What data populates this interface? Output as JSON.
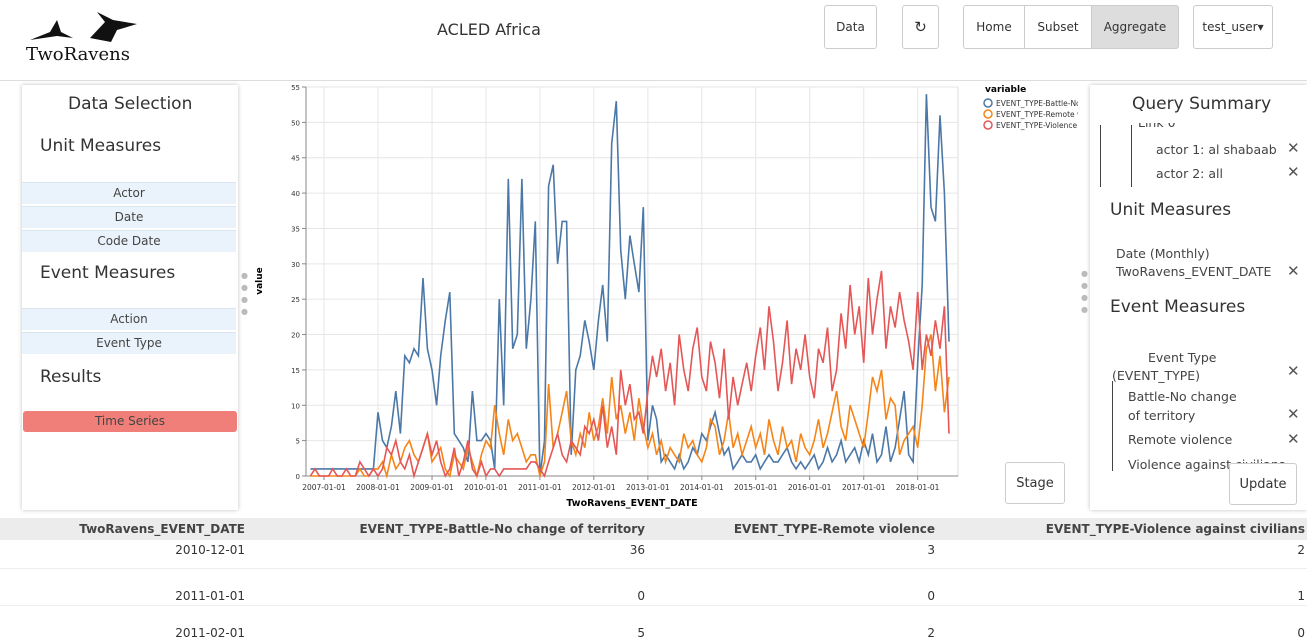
{
  "header": {
    "logo": "TwoRavens",
    "title": "ACLED Africa",
    "buttons": [
      "Data",
      "Home",
      "Subset",
      "Aggregate",
      "test_user"
    ]
  },
  "left_panel": {
    "title": "Data Selection",
    "unit_heading": "Unit Measures",
    "unit_items": [
      "Actor",
      "Date",
      "Code Date"
    ],
    "event_heading": "Event Measures",
    "event_items": [
      "Action",
      "Event Type"
    ],
    "results_heading": "Results",
    "results_items": [
      "Time Series"
    ]
  },
  "right_panel": {
    "title": "Query Summary",
    "link": "Link 0",
    "actors": [
      "actor 1: al shabaab",
      "actor 2: all"
    ],
    "unit_heading": "Unit Measures",
    "unit_items": [
      "Date (Monthly)",
      "TwoRavens_EVENT_DATE"
    ],
    "event_heading": "Event Measures",
    "event_group": "Event Type (EVENT_TYPE)",
    "event_items": [
      "Battle-No change of territory",
      "Remote violence",
      "Violence against civilians"
    ],
    "update": "Update"
  },
  "stage": "Stage",
  "chart_data": {
    "type": "line",
    "legend_title": "variable",
    "legend": "top-right",
    "xlabel": "TwoRavens_EVENT_DATE",
    "ylabel": "value",
    "grid": true,
    "xlim": [
      "2006-09-01",
      "2018-10-01"
    ],
    "xticks": [
      "2007-01-01",
      "2008-01-01",
      "2009-01-01",
      "2010-01-01",
      "2011-01-01",
      "2012-01-01",
      "2013-01-01",
      "2014-01-01",
      "2015-01-01",
      "2016-01-01",
      "2017-01-01",
      "2018-01-01"
    ],
    "ylim": [
      0,
      55
    ],
    "yticks": [
      0,
      5,
      10,
      15,
      20,
      25,
      30,
      35,
      40,
      45,
      50,
      55
    ],
    "x": [
      "2006-10-01",
      "2006-11-01",
      "2006-12-01",
      "2007-01-01",
      "2007-02-01",
      "2007-03-01",
      "2007-04-01",
      "2007-05-01",
      "2007-06-01",
      "2007-07-01",
      "2007-08-01",
      "2007-09-01",
      "2007-10-01",
      "2007-11-01",
      "2007-12-01",
      "2008-01-01",
      "2008-02-01",
      "2008-03-01",
      "2008-04-01",
      "2008-05-01",
      "2008-06-01",
      "2008-07-01",
      "2008-08-01",
      "2008-09-01",
      "2008-10-01",
      "2008-11-01",
      "2008-12-01",
      "2009-01-01",
      "2009-02-01",
      "2009-03-01",
      "2009-04-01",
      "2009-05-01",
      "2009-06-01",
      "2009-07-01",
      "2009-08-01",
      "2009-09-01",
      "2009-10-01",
      "2009-11-01",
      "2009-12-01",
      "2010-01-01",
      "2010-02-01",
      "2010-03-01",
      "2010-04-01",
      "2010-05-01",
      "2010-06-01",
      "2010-07-01",
      "2010-08-01",
      "2010-09-01",
      "2010-10-01",
      "2010-11-01",
      "2010-12-01",
      "2011-01-01",
      "2011-02-01",
      "2011-03-01",
      "2011-04-01",
      "2011-05-01",
      "2011-06-01",
      "2011-07-01",
      "2011-08-01",
      "2011-09-01",
      "2011-10-01",
      "2011-11-01",
      "2011-12-01",
      "2012-01-01",
      "2012-02-01",
      "2012-03-01",
      "2012-04-01",
      "2012-05-01",
      "2012-06-01",
      "2012-07-01",
      "2012-08-01",
      "2012-09-01",
      "2012-10-01",
      "2012-11-01",
      "2012-12-01",
      "2013-01-01",
      "2013-02-01",
      "2013-03-01",
      "2013-04-01",
      "2013-05-01",
      "2013-06-01",
      "2013-07-01",
      "2013-08-01",
      "2013-09-01",
      "2013-10-01",
      "2013-11-01",
      "2013-12-01",
      "2014-01-01",
      "2014-02-01",
      "2014-03-01",
      "2014-04-01",
      "2014-05-01",
      "2014-06-01",
      "2014-07-01",
      "2014-08-01",
      "2014-09-01",
      "2014-10-01",
      "2014-11-01",
      "2014-12-01",
      "2015-01-01",
      "2015-02-01",
      "2015-03-01",
      "2015-04-01",
      "2015-05-01",
      "2015-06-01",
      "2015-07-01",
      "2015-08-01",
      "2015-09-01",
      "2015-10-01",
      "2015-11-01",
      "2015-12-01",
      "2016-01-01",
      "2016-02-01",
      "2016-03-01",
      "2016-04-01",
      "2016-05-01",
      "2016-06-01",
      "2016-07-01",
      "2016-08-01",
      "2016-09-01",
      "2016-10-01",
      "2016-11-01",
      "2016-12-01",
      "2017-01-01",
      "2017-02-01",
      "2017-03-01",
      "2017-04-01",
      "2017-05-01",
      "2017-06-01",
      "2017-07-01",
      "2017-08-01",
      "2017-09-01",
      "2017-10-01",
      "2017-11-01",
      "2017-12-01",
      "2018-01-01",
      "2018-02-01",
      "2018-03-01",
      "2018-04-01",
      "2018-05-01",
      "2018-06-01",
      "2018-07-01",
      "2018-08-01"
    ],
    "series": [
      {
        "name": "EVENT_TYPE-Battle-No change of territory",
        "color": "#4c78a8",
        "values": [
          1,
          1,
          1,
          1,
          1,
          1,
          1,
          1,
          1,
          1,
          1,
          1,
          1,
          1,
          1,
          9,
          5,
          4,
          7,
          12,
          6,
          17,
          16,
          18,
          17,
          28,
          18,
          15,
          10,
          17,
          22,
          26,
          6,
          5,
          4,
          2,
          12,
          5,
          5,
          6,
          5,
          1,
          25,
          10,
          42,
          18,
          20,
          42,
          18,
          25,
          36,
          0,
          5,
          41,
          44,
          30,
          36,
          36,
          3,
          15,
          17,
          22,
          19,
          15,
          22,
          27,
          19,
          47,
          53,
          32,
          25,
          34,
          30,
          26,
          38,
          5,
          10,
          8,
          2,
          3,
          2,
          1,
          3,
          1,
          2,
          4,
          3,
          6,
          5,
          7,
          9,
          6,
          3,
          4,
          1,
          2,
          3,
          2,
          2,
          3,
          1,
          2,
          3,
          2,
          2,
          3,
          4,
          2,
          1,
          2,
          1,
          2,
          3,
          1,
          2,
          4,
          2,
          3,
          5,
          2,
          3,
          4,
          2,
          5,
          3,
          6,
          2,
          3,
          7,
          2,
          4,
          8,
          12,
          3,
          2,
          16,
          27,
          54,
          38,
          36,
          51,
          40,
          19
        ]
      },
      {
        "name": "EVENT_TYPE-Remote violence",
        "color": "#f58518",
        "values": [
          0,
          0,
          0,
          0,
          0,
          0,
          0,
          0,
          0,
          0,
          0,
          1,
          0,
          0,
          1,
          1,
          2,
          0,
          3,
          1,
          2,
          4,
          5,
          3,
          2,
          4,
          6,
          2,
          3,
          4,
          1,
          0,
          3,
          2,
          1,
          4,
          2,
          0,
          3,
          5,
          4,
          10,
          6,
          3,
          8,
          5,
          6,
          4,
          2,
          3,
          3,
          0,
          2,
          13,
          4,
          6,
          9,
          12,
          5,
          3,
          6,
          4,
          9,
          5,
          7,
          11,
          6,
          14,
          8,
          10,
          6,
          9,
          5,
          11,
          7,
          4,
          6,
          3,
          5,
          2,
          4,
          3,
          2,
          6,
          4,
          5,
          3,
          2,
          4,
          8,
          7,
          3,
          5,
          9,
          4,
          6,
          3,
          5,
          7,
          4,
          6,
          3,
          8,
          5,
          3,
          7,
          4,
          5,
          2,
          6,
          4,
          3,
          5,
          8,
          4,
          6,
          9,
          12,
          7,
          5,
          10,
          8,
          6,
          4,
          9,
          14,
          12,
          15,
          8,
          11,
          10,
          3,
          5,
          6,
          7,
          4,
          10,
          18,
          20,
          12,
          17,
          9,
          14
        ]
      },
      {
        "name": "EVENT_TYPE-Violence against civilians",
        "color": "#e45756",
        "values": [
          0,
          1,
          0,
          0,
          0,
          1,
          0,
          0,
          1,
          0,
          0,
          2,
          1,
          0,
          1,
          0,
          1,
          4,
          3,
          5,
          2,
          1,
          3,
          0,
          2,
          4,
          6,
          3,
          5,
          2,
          0,
          1,
          4,
          0,
          2,
          5,
          1,
          0,
          2,
          0,
          1,
          1,
          0,
          1,
          1,
          1,
          1,
          1,
          1,
          2,
          2,
          1,
          0,
          2,
          4,
          6,
          3,
          2,
          5,
          4,
          3,
          7,
          6,
          8,
          5,
          10,
          4,
          7,
          3,
          15,
          10,
          13,
          8,
          9,
          6,
          12,
          17,
          14,
          18,
          12,
          16,
          10,
          20,
          15,
          12,
          18,
          21,
          14,
          12,
          19,
          16,
          11,
          18,
          8,
          14,
          10,
          13,
          16,
          12,
          17,
          21,
          15,
          24,
          19,
          12,
          16,
          22,
          13,
          18,
          15,
          20,
          14,
          11,
          18,
          16,
          21,
          12,
          15,
          23,
          18,
          27,
          20,
          24,
          16,
          28,
          20,
          25,
          29,
          18,
          24,
          21,
          26,
          22,
          19,
          15,
          26,
          15,
          20,
          17,
          22,
          18,
          24,
          6
        ]
      }
    ]
  },
  "table": {
    "header": [
      "TwoRavens_EVENT_DATE",
      "EVENT_TYPE-Battle-No change of territory",
      "EVENT_TYPE-Remote violence",
      "EVENT_TYPE-Violence against civilians"
    ],
    "rows": [
      [
        "2010-12-01",
        "36",
        "3",
        "2"
      ],
      [
        "2011-01-01",
        "0",
        "0",
        "1"
      ],
      [
        "2011-02-01",
        "5",
        "2",
        "0"
      ]
    ]
  }
}
